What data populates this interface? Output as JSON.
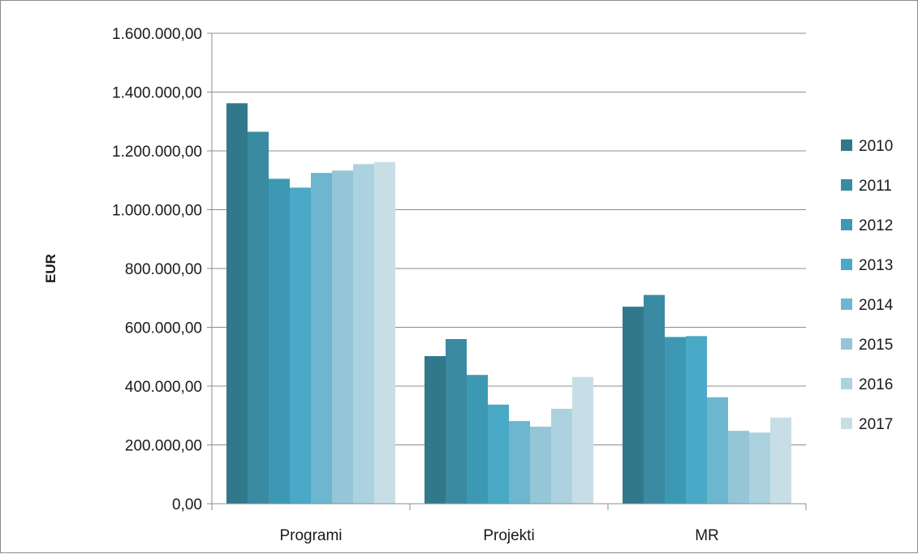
{
  "chart_data": {
    "type": "bar",
    "ylabel": "EUR",
    "ylim": [
      0,
      1600000
    ],
    "y_ticks": [
      0,
      200000,
      400000,
      600000,
      800000,
      1000000,
      1200000,
      1400000,
      1600000
    ],
    "y_tick_labels": [
      "0,00",
      "200.000,00",
      "400.000,00",
      "600.000,00",
      "800.000,00",
      "1.000.000,00",
      "1.200.000,00",
      "1.400.000,00",
      "1.600.000,00"
    ],
    "categories": [
      "Programi",
      "Projekti",
      "MR"
    ],
    "grid": true,
    "legend_position": "right",
    "series": [
      {
        "name": "2010",
        "color": "#31788a",
        "values": [
          1362000,
          502000,
          670000
        ]
      },
      {
        "name": "2011",
        "color": "#3a8aa2",
        "values": [
          1265000,
          560000,
          710000
        ]
      },
      {
        "name": "2012",
        "color": "#3d98b4",
        "values": [
          1105000,
          438000,
          567000
        ]
      },
      {
        "name": "2013",
        "color": "#4aa9c6",
        "values": [
          1075000,
          337000,
          570000
        ]
      },
      {
        "name": "2014",
        "color": "#6cb6cf",
        "values": [
          1125000,
          281000,
          362000
        ]
      },
      {
        "name": "2015",
        "color": "#95c6d7",
        "values": [
          1133000,
          262000,
          248000
        ]
      },
      {
        "name": "2016",
        "color": "#acd2df",
        "values": [
          1155000,
          323000,
          242000
        ]
      },
      {
        "name": "2017",
        "color": "#c8dee6",
        "values": [
          1162000,
          431000,
          293000
        ]
      }
    ]
  }
}
